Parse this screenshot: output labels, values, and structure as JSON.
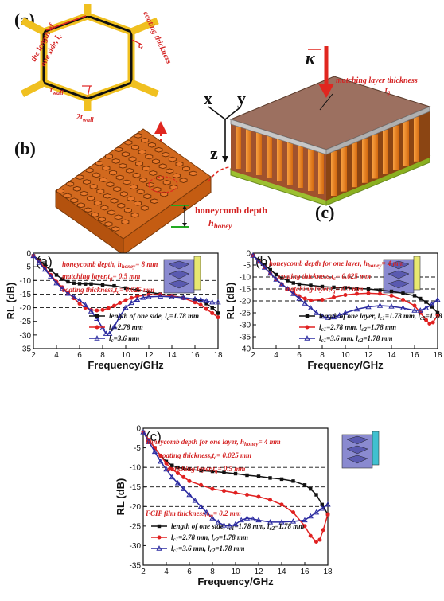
{
  "top": {
    "label_a": "(a)",
    "label_b": "(b)",
    "label_c": "(c)",
    "hex_side_label_1": "the length of",
    "hex_side_label_2": "one side, l",
    "hex_side_label_sub": "c",
    "hex_coating_label": "coating thickness",
    "hex_t": "t",
    "hex_t_sub": "c",
    "hex_twall": "t",
    "hex_twall_sub": "wall",
    "hex_2twall": "2t",
    "hex_2twall_sub": "wall",
    "axis_x": "x",
    "axis_y": "y",
    "axis_z": "z",
    "kappa": "κ",
    "matching_label": "matching layer thickness",
    "matching_t": "t",
    "matching_t_sub": "g",
    "honey_depth": "honeycomb depth",
    "honey_h": "h",
    "honey_h_sub": "honey"
  },
  "chart_data": [
    {
      "type": "line",
      "panel_label": "(a)",
      "xlabel": "Frequency/GHz",
      "ylabel": "RL (dB)",
      "xlim": [
        2,
        18
      ],
      "ylim": [
        -35,
        0
      ],
      "xticks": [
        2,
        4,
        6,
        8,
        10,
        12,
        14,
        16,
        18
      ],
      "yticks": [
        0,
        -5,
        -10,
        -15,
        -20,
        -25,
        -30,
        -35
      ],
      "ref_lines": [
        -10,
        -15,
        -20
      ],
      "annotations": [
        {
          "text": "honeycomb depth, h",
          "sub": "honey",
          "tail": "= 8 mm"
        },
        {
          "text": "matching layer,t",
          "sub": "g",
          "tail": "= 0.5 mm"
        },
        {
          "text": "coating thickness,t",
          "sub": "c",
          "tail": "= 0.025 mm"
        }
      ],
      "series": [
        {
          "name": "length of one side, l",
          "name_sub": "c",
          "name_tail": "=1.78 mm",
          "color": "#111111",
          "marker": "square",
          "x": [
            2,
            2.5,
            3,
            3.5,
            4,
            4.5,
            5,
            5.5,
            6,
            6.5,
            7,
            8,
            9,
            10,
            11,
            12,
            13,
            14,
            15,
            16,
            16.5,
            17,
            17.5,
            18
          ],
          "y": [
            -1,
            -2.5,
            -4.5,
            -6.3,
            -8,
            -9.5,
            -10.5,
            -11,
            -11.2,
            -11.3,
            -11.3,
            -11.6,
            -12,
            -12.8,
            -13.5,
            -14.2,
            -15,
            -15.7,
            -16.3,
            -17,
            -17.5,
            -18.5,
            -20,
            -22
          ]
        },
        {
          "name": "l",
          "name_sub": "c",
          "name_tail": "=2.78 mm",
          "color": "#e02020",
          "marker": "circle",
          "x": [
            2,
            2.5,
            3,
            3.5,
            4,
            4.5,
            5,
            5.5,
            6,
            6.5,
            7,
            7.5,
            8,
            8.5,
            9,
            9.5,
            10,
            10.5,
            11,
            12,
            13,
            14,
            15,
            16,
            16.5,
            17,
            17.5,
            18
          ],
          "y": [
            -1,
            -3,
            -5.5,
            -8,
            -10.5,
            -12.5,
            -14.5,
            -16.5,
            -18.5,
            -20,
            -20.8,
            -21,
            -20.8,
            -20.2,
            -19.3,
            -18.2,
            -17.2,
            -16.4,
            -15.8,
            -15.2,
            -15.2,
            -15.6,
            -16.5,
            -18,
            -19,
            -20.5,
            -22,
            -23.5
          ]
        },
        {
          "name": "l",
          "name_sub": "c",
          "name_tail": "=3.6  mm",
          "color": "#2a2aa0",
          "marker": "triangle",
          "x": [
            2,
            2.5,
            3,
            3.5,
            4,
            4.5,
            5,
            5.5,
            6,
            6.5,
            7,
            7.5,
            8,
            8.3,
            8.6,
            9,
            9.5,
            10,
            10.5,
            11,
            11.5,
            12,
            13,
            14,
            15,
            16,
            16.5,
            17,
            17.5,
            18
          ],
          "y": [
            -1,
            -3.5,
            -6,
            -8.5,
            -11,
            -13,
            -14.8,
            -16,
            -17.3,
            -19,
            -21.3,
            -24,
            -27.5,
            -29.5,
            -29.5,
            -27,
            -23,
            -20,
            -18.2,
            -17,
            -16.3,
            -16,
            -15.8,
            -16,
            -16.3,
            -16.8,
            -17,
            -17.5,
            -18,
            -18
          ]
        }
      ]
    },
    {
      "type": "line",
      "panel_label": "(b)",
      "xlabel": "Frequency/GHz",
      "ylabel": "RL (dB)",
      "xlim": [
        2,
        18
      ],
      "ylim": [
        -40,
        0
      ],
      "xticks": [
        2,
        4,
        6,
        8,
        10,
        12,
        14,
        16,
        18
      ],
      "yticks": [
        0,
        -5,
        -10,
        -15,
        -20,
        -25,
        -30,
        -35,
        -40
      ],
      "ref_lines": [
        -10,
        -15,
        -20
      ],
      "annotations": [
        {
          "text": "honeycomb depth for one layer, h",
          "sub": "honey",
          "tail": "= 4 mm"
        },
        {
          "text": "coating thickness,t",
          "sub": "c",
          "tail": "= 0.025 mm"
        },
        {
          "text": "matching layer,t",
          "sub": "g",
          "tail": "= 0.5 mm"
        }
      ],
      "series": [
        {
          "name": "length of one layer, l",
          "name_sub": "c1",
          "name_tail": "=1.78 mm, l",
          "name_sub2": "c2",
          "name_tail2": "=1.78 mm",
          "color": "#111111",
          "marker": "square",
          "x": [
            2,
            2.5,
            3,
            3.5,
            4,
            4.5,
            5,
            5.5,
            6,
            7,
            8,
            9,
            10,
            11,
            12,
            13,
            14,
            15,
            16,
            16.5,
            17,
            17.5,
            18
          ],
          "y": [
            -1,
            -3,
            -5,
            -7,
            -9,
            -10.5,
            -11.5,
            -12.5,
            -13,
            -13.5,
            -14,
            -14.3,
            -14.5,
            -14.8,
            -15,
            -15.5,
            -16,
            -16.8,
            -17.8,
            -19,
            -20.5,
            -22.5,
            -25
          ]
        },
        {
          "name": "l",
          "name_sub": "c1",
          "name_tail": "=2.78 mm, l",
          "name_sub2": "c2",
          "name_tail2": "=1.78 mm",
          "color": "#e02020",
          "marker": "circle",
          "x": [
            2,
            2.5,
            3,
            3.5,
            4,
            4.5,
            5,
            5.5,
            6,
            6.5,
            7,
            8,
            9,
            10,
            11,
            12,
            13,
            14,
            15,
            16,
            16.5,
            17,
            17.3,
            17.6,
            18
          ],
          "y": [
            -1,
            -3.5,
            -6,
            -8.5,
            -11,
            -13,
            -15,
            -16.5,
            -18,
            -19,
            -19.8,
            -19.5,
            -18.5,
            -17.5,
            -17,
            -16.8,
            -17,
            -17.8,
            -19.5,
            -22,
            -25,
            -28,
            -29.5,
            -29,
            -26
          ]
        },
        {
          "name": "l",
          "name_sub": "c1",
          "name_tail": "=3.6 mm, l",
          "name_sub2": "c2",
          "name_tail2": "=1.78 mm",
          "color": "#2a2aa0",
          "marker": "triangle",
          "x": [
            2,
            2.5,
            3,
            3.5,
            4,
            4.5,
            5,
            5.5,
            6,
            6.5,
            7,
            7.5,
            8,
            8.5,
            9,
            9.5,
            10,
            11,
            12,
            13,
            14,
            15,
            16,
            16.5,
            17,
            17.5,
            18
          ],
          "y": [
            -1,
            -3.5,
            -6,
            -8.5,
            -11,
            -13,
            -15,
            -17,
            -19,
            -21,
            -23,
            -25,
            -26.5,
            -27,
            -26.8,
            -26,
            -25,
            -23.5,
            -22.5,
            -22,
            -22.3,
            -23,
            -24,
            -24,
            -23,
            -21.5,
            -19.5
          ]
        }
      ]
    },
    {
      "type": "line",
      "panel_label": "(c)",
      "xlabel": "Frequency/GHz",
      "ylabel": "RL (dB)",
      "xlim": [
        2,
        18
      ],
      "ylim": [
        -35,
        0
      ],
      "xticks": [
        2,
        4,
        6,
        8,
        10,
        12,
        14,
        16,
        18
      ],
      "yticks": [
        0,
        -5,
        -10,
        -15,
        -20,
        -25,
        -30,
        -35
      ],
      "ref_lines": [
        -10,
        -15,
        -20
      ],
      "annotations": [
        {
          "text": "honeycomb depth for one layer, h",
          "sub": "honey",
          "tail": "= 4 mm"
        },
        {
          "text": "coating thickness,t",
          "sub": "c",
          "tail": "= 0.025 mm"
        },
        {
          "text": "matching layer,t",
          "sub": "g",
          "tail": "= 0.5 mm"
        },
        {
          "text": "FCIP film thickness,t",
          "sub": "m",
          "tail": "= 0.2 mm"
        }
      ],
      "series": [
        {
          "name": "length of one side, l",
          "name_sub": "c1",
          "name_tail": "=1.78 mm, l",
          "name_sub2": "c2",
          "name_tail2": "=1.78 mm",
          "color": "#111111",
          "marker": "square",
          "x": [
            2,
            2.5,
            3,
            3.5,
            4,
            4.5,
            5,
            5.5,
            6,
            7,
            8,
            9,
            10,
            11,
            12,
            13,
            14,
            15,
            16,
            16.5,
            17,
            17.5,
            18
          ],
          "y": [
            -1,
            -3,
            -5,
            -7,
            -8.5,
            -9.5,
            -10,
            -10.3,
            -10.5,
            -10.8,
            -11,
            -11.3,
            -11.6,
            -12,
            -12.3,
            -12.7,
            -13,
            -13.5,
            -14.5,
            -15.5,
            -17,
            -19.5,
            -22
          ]
        },
        {
          "name": "l",
          "name_sub": "c1",
          "name_tail": "=2.78 mm, l",
          "name_sub2": "c2",
          "name_tail2": "=1.78 mm",
          "color": "#e02020",
          "marker": "circle",
          "x": [
            2,
            2.5,
            3,
            3.5,
            4,
            4.5,
            5,
            5.5,
            6,
            7,
            8,
            9,
            10,
            11,
            12,
            13,
            14,
            15,
            16,
            16.5,
            17,
            17.3,
            17.6,
            18
          ],
          "y": [
            -1,
            -3,
            -5,
            -7,
            -9,
            -10.5,
            -11.5,
            -12.5,
            -13.5,
            -14.5,
            -15.5,
            -16,
            -16.5,
            -17,
            -17.5,
            -18.3,
            -19.5,
            -21.5,
            -25,
            -27.5,
            -29,
            -28.5,
            -26,
            -22
          ]
        },
        {
          "name": "l",
          "name_sub": "c1",
          "name_tail": "=3.6 mm, l",
          "name_sub2": "c2",
          "name_tail2": "=1.78 mm",
          "color": "#2a2aa0",
          "marker": "triangle",
          "x": [
            2,
            2.5,
            3,
            3.5,
            4,
            4.5,
            5,
            5.5,
            6,
            6.5,
            7,
            7.5,
            8,
            8.5,
            9,
            9.5,
            10,
            10.5,
            11,
            11.5,
            12,
            13,
            14,
            15,
            16,
            16.5,
            17,
            17.5,
            18
          ],
          "y": [
            -1,
            -3.5,
            -6,
            -8.5,
            -10.5,
            -12.5,
            -14,
            -15.5,
            -17,
            -18.5,
            -20,
            -21.5,
            -23,
            -24,
            -24.8,
            -25,
            -24.5,
            -23.5,
            -23,
            -23.2,
            -23.5,
            -24,
            -24,
            -23.8,
            -23.5,
            -22.5,
            -21.5,
            -20.5,
            -19.5
          ]
        }
      ]
    }
  ]
}
